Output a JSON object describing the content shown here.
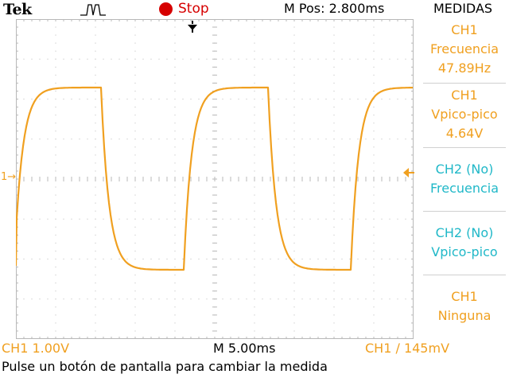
{
  "header": {
    "brand": "Tek",
    "acquisition_state": "Stop",
    "position_readout": "M Pos: 2.800ms",
    "menu_title": "MEDIDAS"
  },
  "measurements": [
    {
      "channel": "CH1",
      "type": "Frecuencia",
      "value": "47.89Hz"
    },
    {
      "channel": "CH1",
      "type": "Vpico-pico",
      "value": "4.64V"
    },
    {
      "channel": "CH2 (No)",
      "type": "Frecuencia",
      "value": ""
    },
    {
      "channel": "CH2 (No)",
      "type": "Vpico-pico",
      "value": ""
    },
    {
      "channel": "CH1",
      "type": "Ninguna",
      "value": ""
    }
  ],
  "footer": {
    "ch1_scale": "CH1  1.00V",
    "timebase": "M 5.00ms",
    "trigger": "CH1 ∕ 145mV",
    "hint": "Pulse un botón de pantalla para cambiar la medida"
  },
  "markers": {
    "channel_marker": "1→"
  },
  "colors": {
    "ch1": "#f0a020",
    "ch2": "#20b8c8",
    "stop": "#d60000",
    "grid": "#b8b8b8"
  }
}
